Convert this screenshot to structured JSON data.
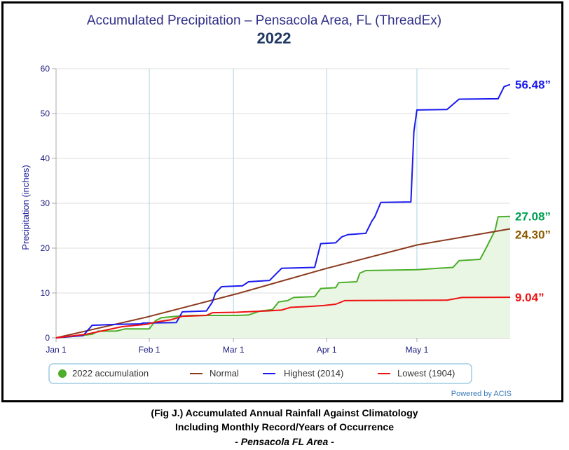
{
  "chart_data": {
    "type": "line",
    "title": "Accumulated Precipitation – Pensacola Area, FL (ThreadEx)",
    "subtitle": "2022",
    "ylabel": "Precipitation (inches)",
    "xlabel": "",
    "ylim": [
      0,
      60
    ],
    "yticks": [
      "0",
      "10",
      "20",
      "30",
      "40",
      "50",
      "60"
    ],
    "xlim": [
      0,
      151
    ],
    "xticks": [
      {
        "label": "Jan 1",
        "day": 0
      },
      {
        "label": "Feb 1",
        "day": 31
      },
      {
        "label": "Mar 1",
        "day": 59
      },
      {
        "label": "Apr 1",
        "day": 90
      },
      {
        "label": "May 1",
        "day": 120
      }
    ],
    "grid": true,
    "legend_position": "bottom",
    "credit": "Powered by ACIS",
    "series": [
      {
        "name": "2022 accumulation",
        "color": "#4cae2a",
        "fill": "#eaf6e4",
        "marker": "dot",
        "values": [
          [
            0,
            0.0
          ],
          [
            8,
            0.5
          ],
          [
            12,
            0.8
          ],
          [
            14,
            1.5
          ],
          [
            20,
            1.5
          ],
          [
            23,
            2.0
          ],
          [
            31,
            2.0
          ],
          [
            33,
            3.8
          ],
          [
            35,
            4.5
          ],
          [
            40,
            4.8
          ],
          [
            45,
            5.0
          ],
          [
            60,
            5.0
          ],
          [
            64,
            5.1
          ],
          [
            68,
            6.0
          ],
          [
            72,
            6.3
          ],
          [
            74,
            8.0
          ],
          [
            77,
            8.3
          ],
          [
            79,
            9.0
          ],
          [
            86,
            9.2
          ],
          [
            88,
            11.0
          ],
          [
            93,
            11.2
          ],
          [
            94,
            12.3
          ],
          [
            100,
            12.5
          ],
          [
            101,
            14.4
          ],
          [
            103,
            15.0
          ],
          [
            120,
            15.2
          ],
          [
            127,
            15.5
          ],
          [
            132,
            15.7
          ],
          [
            134,
            17.2
          ],
          [
            141,
            17.5
          ],
          [
            143,
            20.0
          ],
          [
            146,
            24.0
          ],
          [
            147,
            27.0
          ],
          [
            151,
            27.08
          ]
        ],
        "end_label": "27.08”",
        "end_label_color": "#00a050"
      },
      {
        "name": "Normal",
        "color": "#8b3a1e",
        "values": [
          [
            0,
            0.0
          ],
          [
            30,
            4.6
          ],
          [
            60,
            9.8
          ],
          [
            90,
            15.5
          ],
          [
            120,
            20.7
          ],
          [
            151,
            24.3
          ]
        ],
        "end_label": "24.30”",
        "end_label_color": "#8b5a00"
      },
      {
        "name": "Highest (2014)",
        "color": "#1a1aee",
        "values": [
          [
            0,
            0.0
          ],
          [
            9,
            0.5
          ],
          [
            12,
            2.8
          ],
          [
            20,
            3.0
          ],
          [
            28,
            3.1
          ],
          [
            29,
            3.3
          ],
          [
            40,
            3.4
          ],
          [
            42,
            5.8
          ],
          [
            50,
            6.0
          ],
          [
            52,
            8.0
          ],
          [
            53,
            10.0
          ],
          [
            55,
            11.4
          ],
          [
            62,
            11.6
          ],
          [
            64,
            12.5
          ],
          [
            71,
            12.8
          ],
          [
            75,
            15.5
          ],
          [
            86,
            15.7
          ],
          [
            88,
            21.0
          ],
          [
            93,
            21.2
          ],
          [
            95,
            22.5
          ],
          [
            97,
            23.0
          ],
          [
            103,
            23.3
          ],
          [
            105,
            26.0
          ],
          [
            106,
            27.0
          ],
          [
            108,
            30.2
          ],
          [
            118,
            30.3
          ],
          [
            119,
            46.0
          ],
          [
            120,
            50.8
          ],
          [
            130,
            50.9
          ],
          [
            134,
            53.2
          ],
          [
            147,
            53.3
          ],
          [
            149,
            56.0
          ],
          [
            151,
            56.48
          ]
        ],
        "end_label": "56.48”",
        "end_label_color": "#1a1aee"
      },
      {
        "name": "Lowest (1904)",
        "color": "#ee1111",
        "values": [
          [
            0,
            0.0
          ],
          [
            10,
            0.8
          ],
          [
            15,
            1.5
          ],
          [
            22,
            2.5
          ],
          [
            30,
            3.0
          ],
          [
            33,
            3.5
          ],
          [
            38,
            4.0
          ],
          [
            42,
            4.8
          ],
          [
            50,
            5.0
          ],
          [
            52,
            5.6
          ],
          [
            60,
            5.7
          ],
          [
            63,
            5.8
          ],
          [
            70,
            6.0
          ],
          [
            75,
            6.2
          ],
          [
            78,
            6.8
          ],
          [
            84,
            7.0
          ],
          [
            89,
            7.2
          ],
          [
            93,
            7.5
          ],
          [
            96,
            8.3
          ],
          [
            130,
            8.4
          ],
          [
            135,
            9.0
          ],
          [
            151,
            9.04
          ]
        ],
        "end_label": "9.04”",
        "end_label_color": "#ee1111"
      }
    ]
  },
  "caption": {
    "line1": "(Fig J.) Accumulated Annual Rainfall Against  Climatology",
    "line2": "Including Monthly Record/Years of Occurrence",
    "line3": "- Pensacola FL Area -"
  }
}
